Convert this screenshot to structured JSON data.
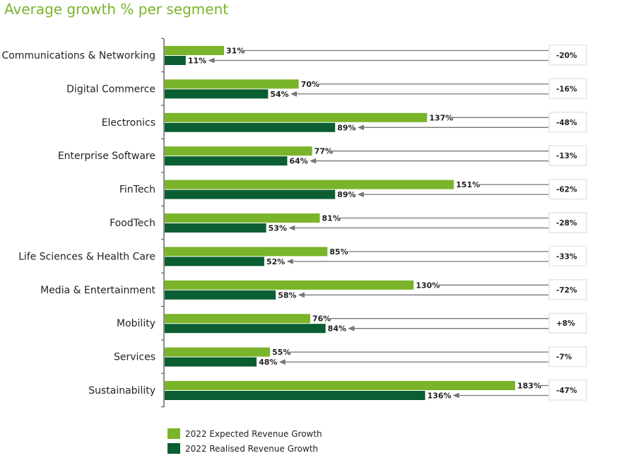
{
  "chart_data": {
    "type": "bar",
    "orientation": "horizontal",
    "title": "Average growth % per segment",
    "categories": [
      "Communications & Networking",
      "Digital Commerce",
      "Electronics",
      "Enterprise Software",
      "FinTech",
      "FoodTech",
      "Life Sciences & Health Care",
      "Media & Entertainment",
      "Mobility",
      "Services",
      "Sustainability"
    ],
    "series": [
      {
        "name": "2022 Expected Revenue Growth",
        "color": "#7ab42a",
        "values": [
          31,
          70,
          137,
          77,
          151,
          81,
          85,
          130,
          76,
          55,
          183
        ],
        "labels": [
          "31%",
          "70%",
          "137%",
          "77%",
          "151%",
          "81%",
          "85%",
          "130%",
          "76%",
          "55%",
          "183%"
        ]
      },
      {
        "name": "2022 Realised Revenue Growth",
        "color": "#0b5e32",
        "values": [
          11,
          54,
          89,
          64,
          89,
          53,
          52,
          58,
          84,
          48,
          136
        ],
        "labels": [
          "11%",
          "54%",
          "89%",
          "64%",
          "89%",
          "53%",
          "52%",
          "58%",
          "84%",
          "48%",
          "136%"
        ]
      }
    ],
    "differences": [
      "-20%",
      "-16%",
      "-48%",
      "-13%",
      "-62%",
      "-28%",
      "-33%",
      "-72%",
      "+8%",
      "-7%",
      "-47%"
    ],
    "xlim": [
      0,
      183
    ],
    "grid": false,
    "legend": "bottom-left"
  }
}
